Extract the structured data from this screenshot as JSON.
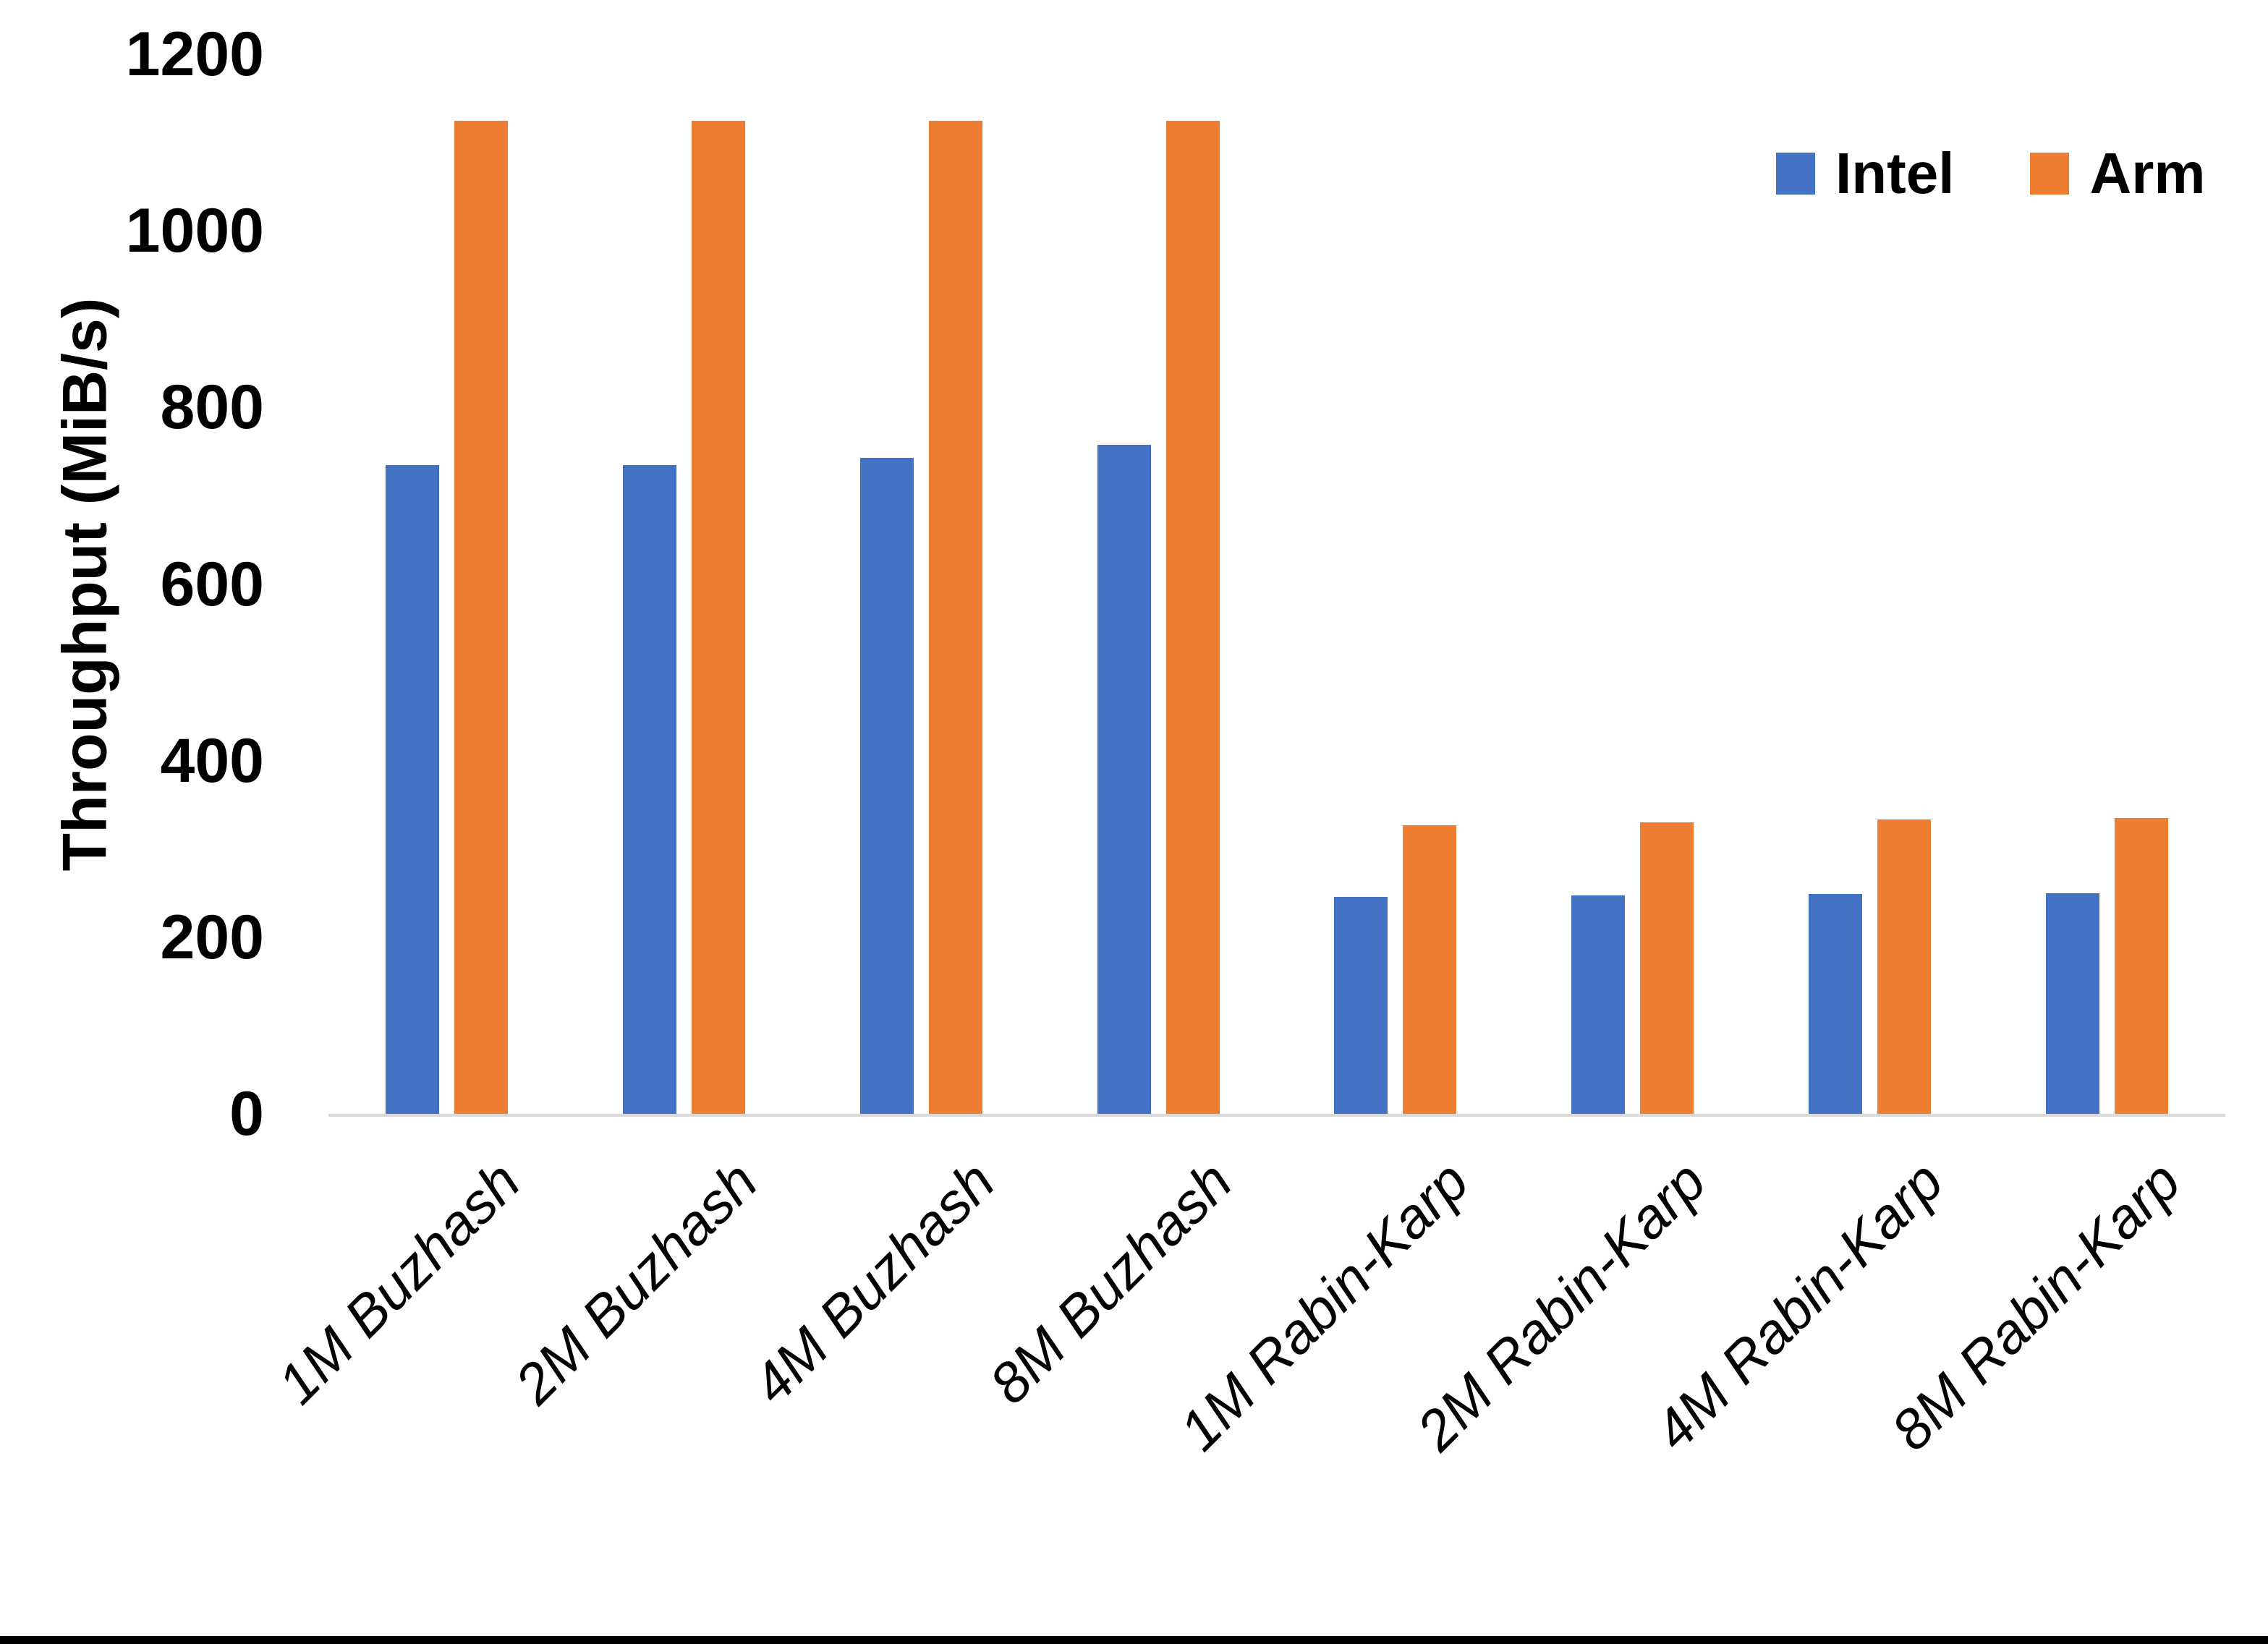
{
  "chart_data": {
    "type": "bar",
    "categories": [
      "1M Buzhash",
      "2M Buzhash",
      "4M Buzhash",
      "8M Buzhash",
      "1M Rabin-Karp",
      "2M Rabin-Karp",
      "4M Rabin-Karp",
      "8M Rabin-Karp"
    ],
    "series": [
      {
        "name": "Intel",
        "color": "#4472c4",
        "values": [
          735,
          735,
          743,
          758,
          246,
          247,
          249,
          250
        ]
      },
      {
        "name": "Arm",
        "color": "#ed7d31",
        "values": [
          1125,
          1125,
          1125,
          1125,
          327,
          330,
          333,
          335
        ]
      }
    ],
    "title": "",
    "xlabel": "",
    "ylabel": "Throughput (MiB/s)",
    "ylim": [
      0,
      1200
    ],
    "yticks": [
      1200,
      1000,
      800,
      600,
      400,
      200,
      0
    ],
    "grid": "off",
    "legend_position": "top-right",
    "axis_line_color": "#d9d9d9"
  }
}
